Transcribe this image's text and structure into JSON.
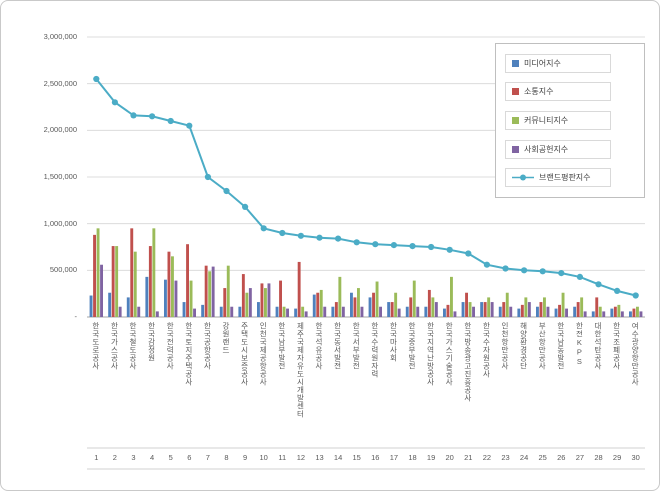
{
  "chart_data": {
    "type": "bar+line",
    "title": "",
    "xlabel": "",
    "ylabel": "",
    "ylim": [
      0,
      3000000
    ],
    "ytick_interval": 500000,
    "ytick_labels": [
      "-",
      "500,000",
      "1,000,000",
      "1,500,000",
      "2,000,000",
      "2,500,000",
      "3,000,000"
    ],
    "grid": true,
    "legend_position": "top-right",
    "categories": [
      "한국도로공사",
      "한국가스공사",
      "한국철도공사",
      "한국감정원",
      "한국전력공사",
      "한국토지주택공사",
      "한국공항공사",
      "강원랜드",
      "주택도시보증공사",
      "인천국제공항공사",
      "한국남부발전",
      "제주국제자유도시개발센터",
      "한국석유공사",
      "한국동서발전",
      "한국서부발전",
      "한국수력원자력",
      "한국마사회",
      "한국중부발전",
      "한국지역난방공사",
      "한국가스기술공사",
      "한국방송광고진흥공사",
      "한국수자원공사",
      "인천항만공사",
      "해양환경공단",
      "부산항만공사",
      "한국남동발전",
      "한전KPS",
      "대한석탄공사",
      "한국조폐공사",
      "여수광양항만공사"
    ],
    "rank_labels": [
      "1",
      "2",
      "3",
      "4",
      "5",
      "6",
      "7",
      "8",
      "9",
      "10",
      "11",
      "12",
      "13",
      "14",
      "15",
      "16",
      "17",
      "18",
      "19",
      "20",
      "21",
      "22",
      "23",
      "24",
      "25",
      "26",
      "27",
      "28",
      "29",
      "30"
    ],
    "series": [
      {
        "name": "미디어지수",
        "type": "bar",
        "color": "#4F81BD",
        "values": [
          230000,
          260000,
          210000,
          430000,
          400000,
          160000,
          130000,
          110000,
          110000,
          160000,
          110000,
          90000,
          240000,
          110000,
          260000,
          210000,
          160000,
          110000,
          110000,
          90000,
          160000,
          160000,
          110000,
          90000,
          110000,
          90000,
          110000,
          60000,
          90000,
          60000
        ]
      },
      {
        "name": "소통지수",
        "type": "bar",
        "color": "#C0504D",
        "values": [
          880000,
          760000,
          950000,
          760000,
          700000,
          780000,
          550000,
          310000,
          460000,
          360000,
          390000,
          590000,
          260000,
          160000,
          210000,
          260000,
          160000,
          210000,
          290000,
          130000,
          260000,
          160000,
          160000,
          130000,
          160000,
          130000,
          160000,
          210000,
          110000,
          90000
        ]
      },
      {
        "name": "커뮤니티지수",
        "type": "bar",
        "color": "#9BBB59",
        "values": [
          950000,
          760000,
          700000,
          950000,
          650000,
          390000,
          490000,
          550000,
          260000,
          310000,
          110000,
          110000,
          290000,
          430000,
          310000,
          380000,
          260000,
          390000,
          210000,
          430000,
          160000,
          210000,
          260000,
          210000,
          210000,
          260000,
          210000,
          110000,
          130000,
          110000
        ]
      },
      {
        "name": "사회공헌지수",
        "type": "bar",
        "color": "#8064A2",
        "values": [
          560000,
          110000,
          110000,
          60000,
          390000,
          90000,
          540000,
          110000,
          310000,
          360000,
          90000,
          60000,
          110000,
          110000,
          110000,
          110000,
          90000,
          110000,
          160000,
          60000,
          110000,
          160000,
          110000,
          160000,
          110000,
          90000,
          60000,
          60000,
          60000,
          60000
        ]
      },
      {
        "name": "브랜드평판지수",
        "type": "line",
        "color": "#4BACC6",
        "values": [
          2550000,
          2300000,
          2160000,
          2150000,
          2100000,
          2050000,
          1500000,
          1350000,
          1180000,
          950000,
          900000,
          870000,
          850000,
          840000,
          800000,
          780000,
          770000,
          760000,
          750000,
          720000,
          680000,
          560000,
          520000,
          500000,
          490000,
          470000,
          430000,
          350000,
          280000,
          230000
        ]
      }
    ],
    "colors": {
      "grid": "#dcdcdc",
      "axis": "#a6a6a6",
      "text": "#595959",
      "legend_border": "#bfbfbf"
    }
  }
}
